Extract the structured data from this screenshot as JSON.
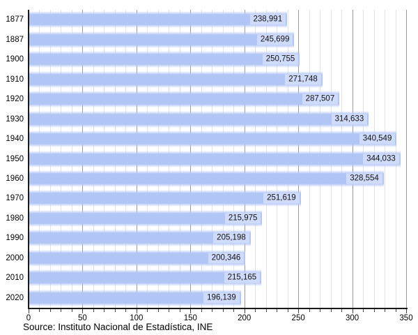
{
  "chart_data": {
    "type": "bar",
    "orientation": "horizontal",
    "title": "",
    "categories": [
      "1877",
      "1887",
      "1900",
      "1910",
      "1920",
      "1930",
      "1940",
      "1950",
      "1960",
      "1970",
      "1980",
      "1990",
      "2000",
      "2010",
      "2020"
    ],
    "values": [
      238991,
      245699,
      250755,
      271748,
      287507,
      314633,
      340549,
      344033,
      328554,
      251619,
      215975,
      205198,
      200346,
      215165,
      196139
    ],
    "value_labels": [
      "238,991",
      "245,699",
      "250,755",
      "271,748",
      "287,507",
      "314,633",
      "340,549",
      "344,033",
      "328,554",
      "251,619",
      "215,975",
      "205,198",
      "200,346",
      "215,165",
      "196,139"
    ],
    "xlim": [
      0,
      350
    ],
    "x_tick_labels": [
      "0",
      "50",
      "100",
      "150",
      "200",
      "250",
      "300",
      "350"
    ],
    "x_major_step": 50,
    "x_minor_step": 10,
    "axis_unit_divisor": 1000,
    "grid": true,
    "legend": null,
    "source": "Source: Instituto Nacional de Estadística, INE",
    "colors": {
      "bar": "#b2c6f6",
      "bar_edge_fade": "rgba(178,198,246,0)",
      "bar_label_bg": "#cfdbfa",
      "grid_minor": "#e2e2e2",
      "grid_major": "#999999",
      "axis": "#1a1a1a",
      "tick": "#444444",
      "text": "#000000",
      "value_text": "#111111",
      "background": "#ffffff"
    }
  }
}
